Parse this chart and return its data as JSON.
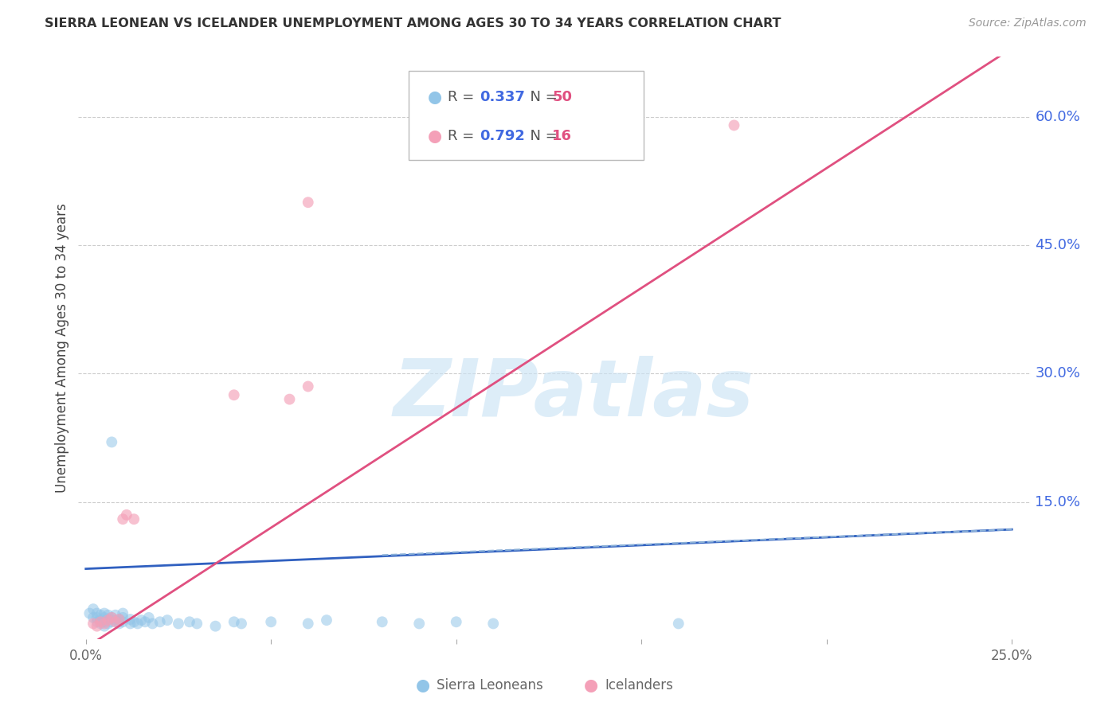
{
  "title": "SIERRA LEONEAN VS ICELANDER UNEMPLOYMENT AMONG AGES 30 TO 34 YEARS CORRELATION CHART",
  "source": "Source: ZipAtlas.com",
  "ylabel": "Unemployment Among Ages 30 to 34 years",
  "x_ticks": [
    0.0,
    0.05,
    0.1,
    0.15,
    0.2,
    0.25
  ],
  "x_tick_labels": [
    "0.0%",
    "",
    "",
    "",
    "",
    "25.0%"
  ],
  "y_ticks_right": [
    0.0,
    0.15,
    0.3,
    0.45,
    0.6
  ],
  "y_tick_labels_right": [
    "",
    "15.0%",
    "30.0%",
    "45.0%",
    "60.0%"
  ],
  "xlim": [
    -0.002,
    0.255
  ],
  "ylim": [
    -0.01,
    0.67
  ],
  "watermark_text": "ZIPatlas",
  "blue_R": "0.337",
  "blue_N": "50",
  "pink_R": "0.792",
  "pink_N": "16",
  "blue_color": "#92c5e8",
  "pink_color": "#f4a0b8",
  "blue_line_color": "#3060c0",
  "pink_line_color": "#e05080",
  "blue_scatter": [
    [
      0.001,
      0.02
    ],
    [
      0.002,
      0.015
    ],
    [
      0.002,
      0.025
    ],
    [
      0.003,
      0.01
    ],
    [
      0.003,
      0.015
    ],
    [
      0.003,
      0.02
    ],
    [
      0.004,
      0.008
    ],
    [
      0.004,
      0.012
    ],
    [
      0.004,
      0.018
    ],
    [
      0.005,
      0.005
    ],
    [
      0.005,
      0.01
    ],
    [
      0.005,
      0.015
    ],
    [
      0.005,
      0.02
    ],
    [
      0.006,
      0.008
    ],
    [
      0.006,
      0.013
    ],
    [
      0.006,
      0.018
    ],
    [
      0.007,
      0.01
    ],
    [
      0.007,
      0.015
    ],
    [
      0.008,
      0.012
    ],
    [
      0.008,
      0.018
    ],
    [
      0.009,
      0.008
    ],
    [
      0.009,
      0.013
    ],
    [
      0.01,
      0.01
    ],
    [
      0.01,
      0.015
    ],
    [
      0.01,
      0.02
    ],
    [
      0.012,
      0.008
    ],
    [
      0.012,
      0.013
    ],
    [
      0.013,
      0.01
    ],
    [
      0.014,
      0.008
    ],
    [
      0.015,
      0.012
    ],
    [
      0.016,
      0.01
    ],
    [
      0.017,
      0.015
    ],
    [
      0.018,
      0.008
    ],
    [
      0.02,
      0.01
    ],
    [
      0.022,
      0.012
    ],
    [
      0.025,
      0.008
    ],
    [
      0.028,
      0.01
    ],
    [
      0.03,
      0.008
    ],
    [
      0.035,
      0.005
    ],
    [
      0.04,
      0.01
    ],
    [
      0.042,
      0.008
    ],
    [
      0.05,
      0.01
    ],
    [
      0.06,
      0.008
    ],
    [
      0.065,
      0.012
    ],
    [
      0.08,
      0.01
    ],
    [
      0.09,
      0.008
    ],
    [
      0.1,
      0.01
    ],
    [
      0.11,
      0.008
    ],
    [
      0.16,
      0.008
    ],
    [
      0.007,
      0.22
    ]
  ],
  "pink_scatter": [
    [
      0.002,
      0.008
    ],
    [
      0.003,
      0.005
    ],
    [
      0.004,
      0.01
    ],
    [
      0.005,
      0.008
    ],
    [
      0.006,
      0.012
    ],
    [
      0.007,
      0.015
    ],
    [
      0.008,
      0.01
    ],
    [
      0.009,
      0.013
    ],
    [
      0.01,
      0.13
    ],
    [
      0.011,
      0.135
    ],
    [
      0.013,
      0.13
    ],
    [
      0.04,
      0.275
    ],
    [
      0.055,
      0.27
    ],
    [
      0.06,
      0.285
    ],
    [
      0.175,
      0.59
    ],
    [
      0.06,
      0.5
    ]
  ],
  "blue_trendline_x": [
    0.0,
    0.25
  ],
  "blue_trendline_y": [
    0.072,
    0.118
  ],
  "pink_trendline_x": [
    0.0,
    0.25
  ],
  "pink_trendline_y": [
    -0.02,
    0.68
  ],
  "background_color": "#ffffff",
  "grid_color": "#cccccc"
}
